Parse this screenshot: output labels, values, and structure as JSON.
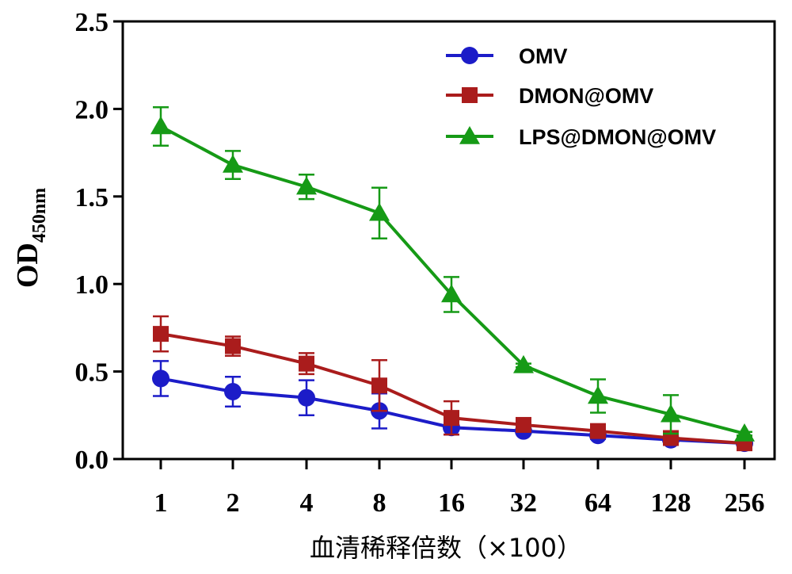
{
  "chart_data": {
    "type": "line",
    "title": "",
    "xlabel": "血清稀释倍数（×100）",
    "ylabel": {
      "main": "OD",
      "subscript": "450nm"
    },
    "categories": [
      "1",
      "2",
      "4",
      "8",
      "16",
      "32",
      "64",
      "128",
      "256"
    ],
    "ylim": [
      0,
      2.5
    ],
    "yticks": [
      "0.0",
      "0.5",
      "1.0",
      "1.5",
      "2.0",
      "2.5"
    ],
    "grid": false,
    "legend_position": "top-right",
    "series": [
      {
        "name": "OMV",
        "color": "#1c1cc8",
        "marker": "circle",
        "values": [
          0.46,
          0.385,
          0.35,
          0.275,
          0.18,
          0.16,
          0.135,
          0.11,
          0.09
        ],
        "errors": [
          0.1,
          0.085,
          0.1,
          0.1,
          0.04,
          0.01,
          0.02,
          0.02,
          0.01
        ]
      },
      {
        "name": "DMON@OMV",
        "color": "#aa1c1c",
        "marker": "square",
        "values": [
          0.715,
          0.645,
          0.545,
          0.42,
          0.235,
          0.195,
          0.16,
          0.12,
          0.09
        ],
        "errors": [
          0.1,
          0.055,
          0.06,
          0.145,
          0.095,
          0.02,
          0.025,
          0.02,
          0.01
        ]
      },
      {
        "name": "LPS@DMON@OMV",
        "color": "#169a16",
        "marker": "triangle",
        "values": [
          1.9,
          1.68,
          1.555,
          1.405,
          0.94,
          0.535,
          0.36,
          0.255,
          0.145
        ],
        "errors": [
          0.11,
          0.08,
          0.07,
          0.145,
          0.1,
          0.01,
          0.095,
          0.11,
          0.01
        ]
      }
    ]
  }
}
